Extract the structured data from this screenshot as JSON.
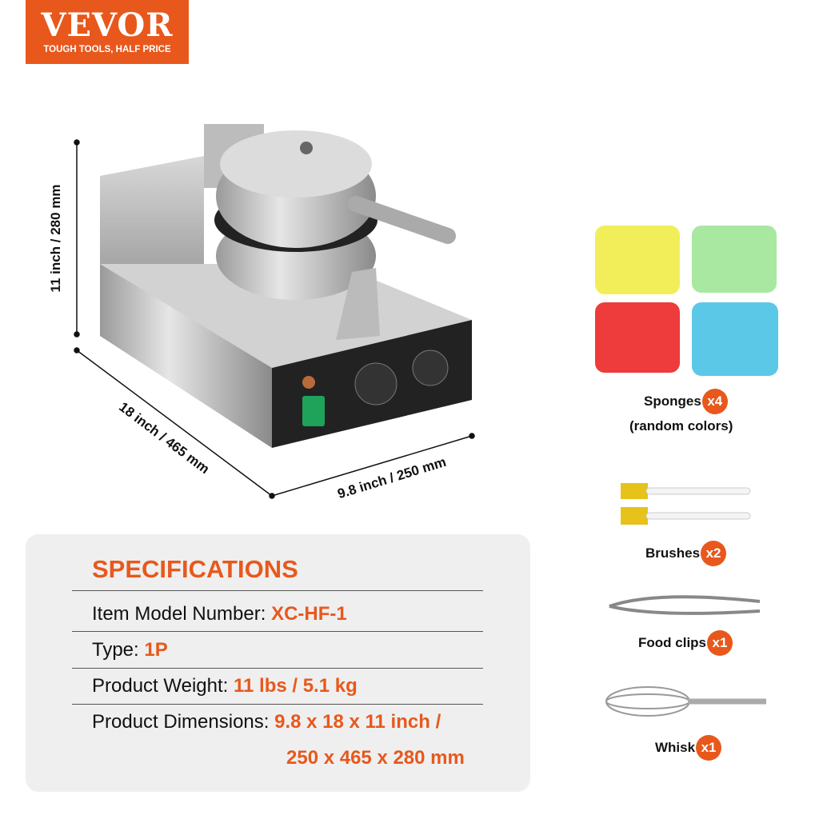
{
  "brand": {
    "name": "VEVOR",
    "tagline": "TOUGH TOOLS, HALF PRICE",
    "color": "#e8581c"
  },
  "dimensions": {
    "height": "11 inch / 280 mm",
    "depth": "18 inch / 465 mm",
    "width": "9.8 inch / 250 mm"
  },
  "specs": {
    "title": "SPECIFICATIONS",
    "rows": [
      {
        "label": "Item Model Number: ",
        "value": "XC-HF-1"
      },
      {
        "label": "Type: ",
        "value": "1P"
      },
      {
        "label": "Product Weight: ",
        "value": "11 lbs / 5.1 kg"
      },
      {
        "label": "Product Dimensions: ",
        "value": "9.8 x 18 x 11 inch /",
        "value2": "250 x 465 x 280 mm"
      }
    ]
  },
  "accessories": [
    {
      "name": "Sponges",
      "qty": "x4",
      "note": "(random colors)"
    },
    {
      "name": "Brushes",
      "qty": "x2"
    },
    {
      "name": "Food clips",
      "qty": "x1"
    },
    {
      "name": "Whisk",
      "qty": "x1"
    }
  ],
  "sponge_colors": [
    "#f2ee5a",
    "#a8e8a0",
    "#ee3b3b",
    "#5cc8e8"
  ]
}
